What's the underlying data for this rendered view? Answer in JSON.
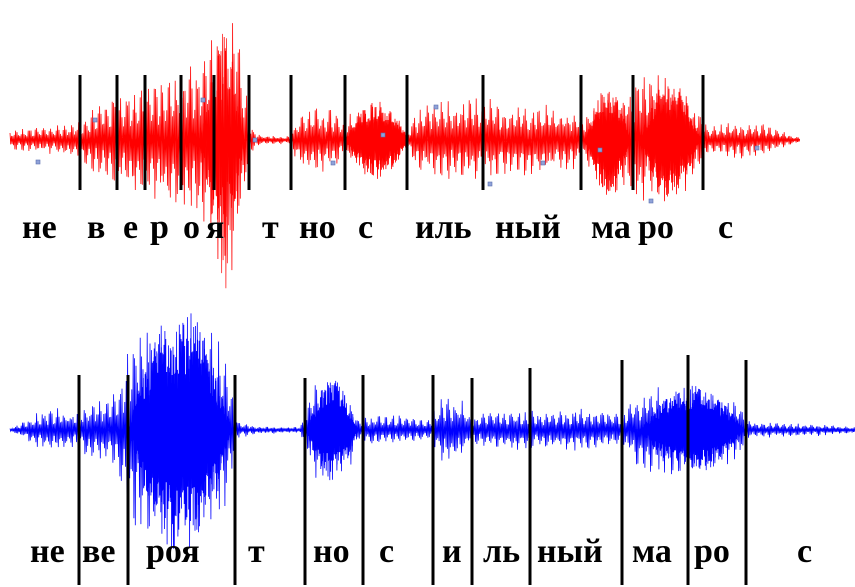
{
  "top_waveform": {
    "color": "#ff0000",
    "segments": [
      "не",
      "в",
      "е",
      "р",
      "о",
      "я",
      "т",
      "но",
      "с",
      "иль",
      "ный",
      "ма",
      "ро",
      "с"
    ]
  },
  "bottom_waveform": {
    "color": "#0000ff",
    "segments": [
      "не",
      "ве",
      "роя",
      "т",
      "но",
      "с",
      "и",
      "ль",
      "ный",
      "ма",
      "ро",
      "с"
    ]
  },
  "divider_color": "#000000"
}
